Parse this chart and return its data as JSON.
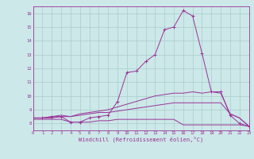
{
  "xlabel": "Windchill (Refroidissement éolien,°C)",
  "xlim": [
    0,
    23
  ],
  "ylim": [
    7.5,
    16.5
  ],
  "xticks": [
    0,
    1,
    2,
    3,
    4,
    5,
    6,
    7,
    8,
    9,
    10,
    11,
    12,
    13,
    14,
    15,
    16,
    17,
    18,
    19,
    20,
    21,
    22,
    23
  ],
  "yticks": [
    8,
    9,
    10,
    11,
    12,
    13,
    14,
    15,
    16
  ],
  "bg_color": "#cce8e8",
  "grid_color": "#aacccc",
  "line_color": "#993399",
  "line1_x": [
    0,
    1,
    2,
    3,
    4,
    5,
    6,
    7,
    8,
    9,
    10,
    11,
    12,
    13,
    14,
    15,
    16,
    17,
    18,
    19,
    20,
    21,
    22,
    23
  ],
  "line1_y": [
    8.4,
    8.4,
    8.5,
    8.5,
    8.1,
    8.1,
    8.4,
    8.5,
    8.6,
    9.6,
    11.7,
    11.8,
    12.5,
    13.0,
    14.8,
    15.0,
    16.2,
    15.8,
    13.1,
    10.3,
    10.3,
    8.6,
    8.0,
    7.8
  ],
  "line2_x": [
    0,
    1,
    2,
    3,
    4,
    5,
    6,
    7,
    8,
    9,
    10,
    11,
    12,
    13,
    14,
    15,
    16,
    17,
    18,
    19,
    20,
    21,
    22,
    23
  ],
  "line2_y": [
    8.4,
    8.4,
    8.5,
    8.6,
    8.5,
    8.7,
    8.8,
    8.9,
    9.0,
    9.2,
    9.4,
    9.6,
    9.8,
    10.0,
    10.1,
    10.2,
    10.2,
    10.3,
    10.2,
    10.3,
    10.2,
    8.7,
    8.4,
    7.8
  ],
  "line3_x": [
    0,
    1,
    2,
    3,
    4,
    5,
    6,
    7,
    8,
    9,
    10,
    11,
    12,
    13,
    14,
    15,
    16,
    17,
    18,
    19,
    20,
    21,
    22,
    23
  ],
  "line3_y": [
    8.3,
    8.3,
    8.3,
    8.3,
    8.1,
    8.1,
    8.1,
    8.2,
    8.2,
    8.3,
    8.3,
    8.3,
    8.3,
    8.3,
    8.3,
    8.3,
    7.9,
    7.9,
    7.9,
    7.9,
    7.9,
    7.9,
    7.9,
    7.8
  ],
  "line4_x": [
    0,
    1,
    2,
    3,
    4,
    5,
    6,
    7,
    8,
    9,
    10,
    11,
    12,
    13,
    14,
    15,
    16,
    17,
    18,
    19,
    20,
    21,
    22,
    23
  ],
  "line4_y": [
    8.4,
    8.4,
    8.4,
    8.5,
    8.5,
    8.6,
    8.7,
    8.8,
    8.8,
    8.9,
    9.0,
    9.1,
    9.2,
    9.3,
    9.4,
    9.5,
    9.5,
    9.5,
    9.5,
    9.5,
    9.5,
    8.7,
    8.4,
    7.8
  ],
  "line1_markers": true,
  "line2_markers": false,
  "line3_markers": false,
  "line4_markers": false
}
